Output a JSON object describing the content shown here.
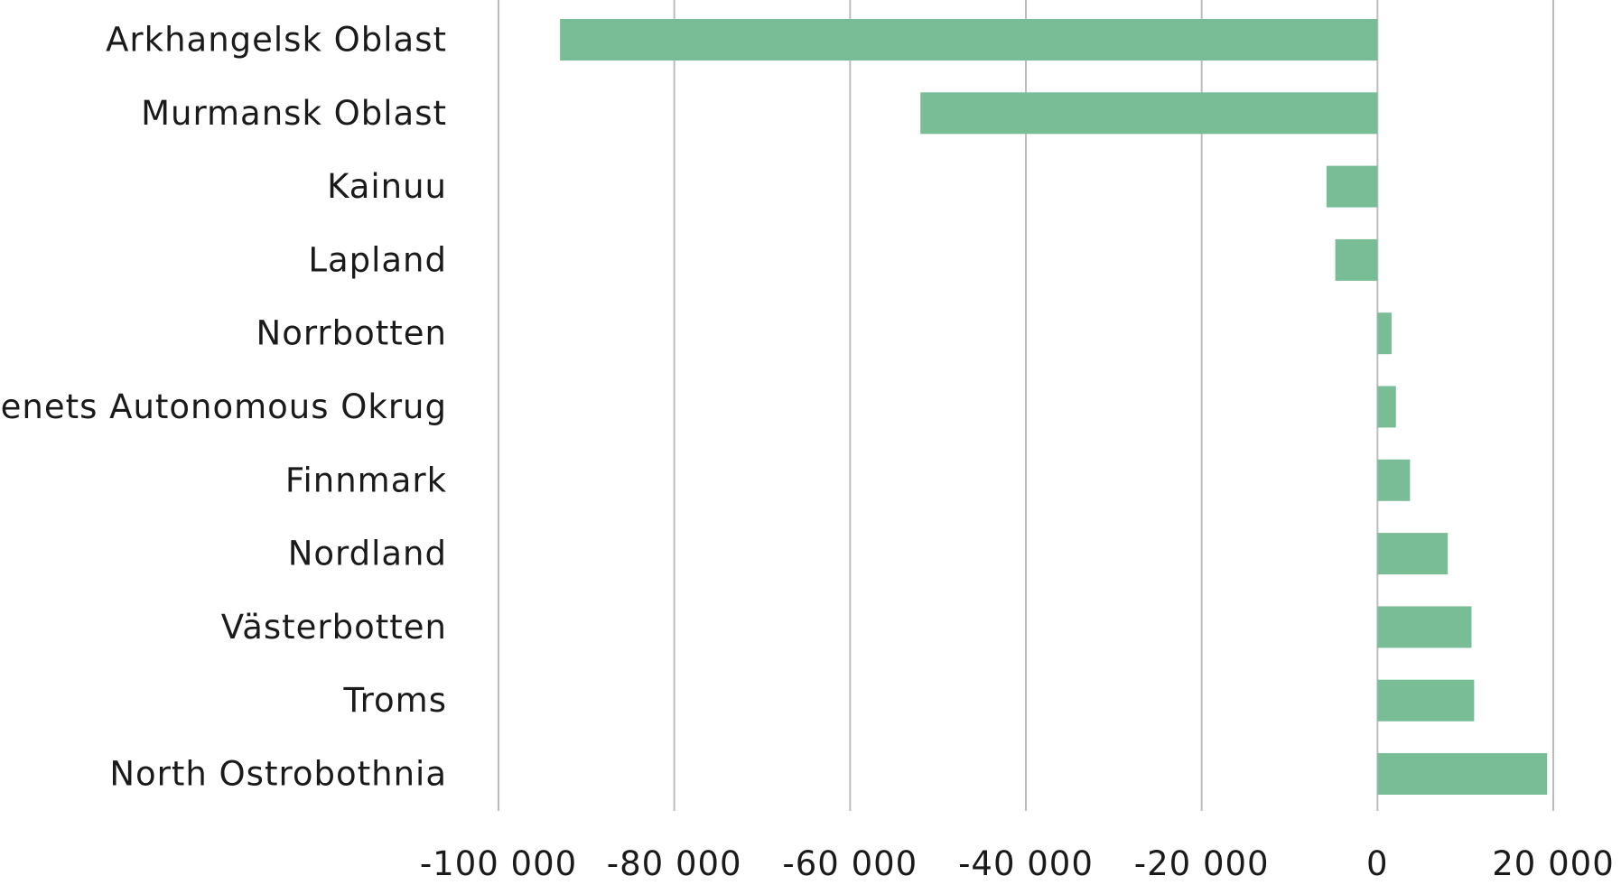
{
  "chart_data": {
    "type": "bar",
    "orientation": "horizontal",
    "categories": [
      "Arkhangelsk Oblast",
      "Murmansk Oblast",
      "Kainuu",
      "Lapland",
      "Norrbotten",
      "Nenets Autonomous Okrug",
      "Finnmark",
      "Nordland",
      "Västerbotten",
      "Troms",
      "North Ostrobothnia"
    ],
    "values": [
      -93000,
      -52000,
      -5800,
      -4800,
      1600,
      2100,
      3700,
      8000,
      10700,
      11000,
      19300
    ],
    "xlim": [
      -100000,
      20000
    ],
    "xticks": [
      -100000,
      -80000,
      -60000,
      -40000,
      -20000,
      0,
      20000
    ],
    "xtick_labels": [
      "-100 000",
      "-80 000",
      "-60 000",
      "-40 000",
      "-20 000",
      "0",
      "20 000"
    ],
    "title": "",
    "xlabel": "",
    "ylabel": "",
    "grid": "vertical",
    "legend": "none",
    "bar_color": "#79bd96",
    "grid_color": "#bdbdbd",
    "text_color": "#1a1a1a"
  }
}
